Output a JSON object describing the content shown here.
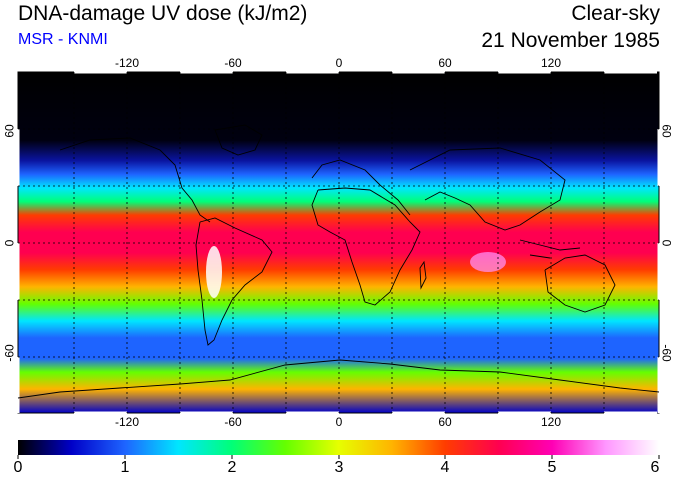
{
  "header": {
    "title": "DNA-damage UV dose (kJ/m2)",
    "subtitle": "MSR - KNMI",
    "sky_condition": "Clear-sky",
    "date": "21 November 1985"
  },
  "map": {
    "longitude_ticks": [
      "-120",
      "-60",
      "0",
      "60",
      "120"
    ],
    "latitude_ticks_left": [
      "60",
      "0",
      "-60"
    ],
    "latitude_ticks_right": [
      "60",
      "0",
      "-60"
    ],
    "longitude_range": [
      -180,
      180
    ],
    "latitude_range": [
      -90,
      90
    ]
  },
  "colorbar": {
    "labels": [
      "0",
      "1",
      "2",
      "3",
      "4",
      "5",
      "6"
    ],
    "min": 0,
    "max": 6,
    "stops": [
      "#000000",
      "#0000c8",
      "#1e64ff",
      "#00e6ff",
      "#00ff78",
      "#64ff00",
      "#e6ff00",
      "#ffb400",
      "#ff3c00",
      "#ff0050",
      "#ff00b4",
      "#ff96ff",
      "#ffffff"
    ]
  },
  "colors": {
    "title_text": "#000000",
    "subtitle_text": "#0000ff",
    "grid": "#000000",
    "coastline": "#000000"
  }
}
